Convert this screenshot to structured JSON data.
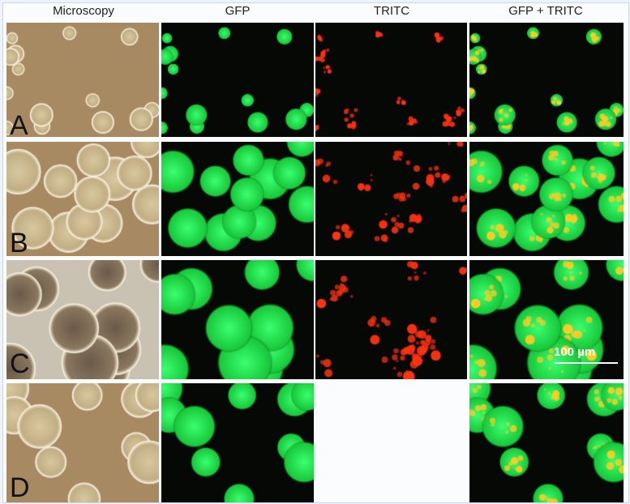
{
  "columns": [
    {
      "label": "Microscopy",
      "kind": "bright"
    },
    {
      "label": "GFP",
      "kind": "gfp"
    },
    {
      "label": "TRITC",
      "kind": "tritc"
    },
    {
      "label": "GFP + TRITC",
      "kind": "merge"
    }
  ],
  "rows": [
    {
      "label": "A",
      "cell_size": "small"
    },
    {
      "label": "B",
      "cell_size": "medium"
    },
    {
      "label": "C",
      "cell_size": "large"
    },
    {
      "label": "D",
      "cell_size": "medium",
      "missing_columns": [
        "TRITC"
      ]
    }
  ],
  "scale_bar": {
    "label": "100 µm"
  },
  "colors": {
    "gfp": "#22dd44",
    "tritc": "#ff3311",
    "bright_bg": "#a88a62",
    "merge_spot": "#ffcc22"
  }
}
